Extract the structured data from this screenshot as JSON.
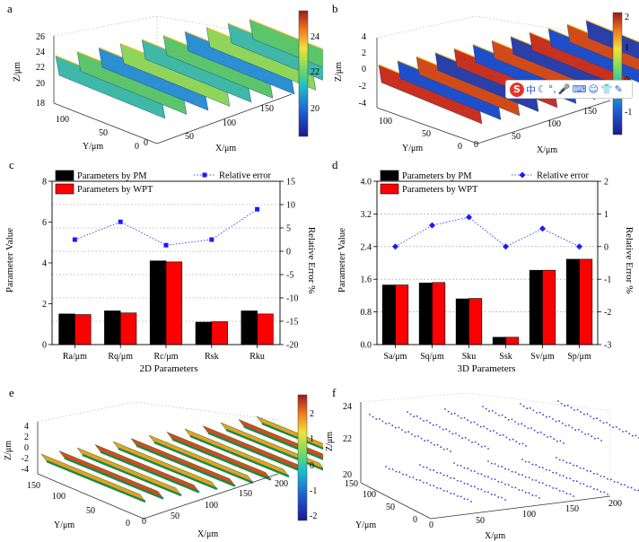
{
  "panels": {
    "a": {
      "label": "a",
      "zlabel": "Z/μm",
      "xlabel": "X/μm",
      "ylabel": "Y/μm",
      "zticks": [
        "26",
        "24",
        "22",
        "20",
        "18"
      ],
      "xticks": [
        "0",
        "50",
        "100",
        "150"
      ],
      "yticks": [
        "100",
        "50",
        "0"
      ],
      "colorbar_ticks": [
        "24",
        "22",
        "20"
      ]
    },
    "b": {
      "label": "b",
      "zlabel": "Z/μm",
      "xlabel": "X/μm",
      "ylabel": "Y/μm",
      "zticks": [
        "4",
        "2",
        "0",
        "-2",
        "-4"
      ],
      "xticks": [
        "0",
        "50",
        "100",
        "150"
      ],
      "yticks": [
        "100",
        "50",
        "0"
      ],
      "colorbar_ticks": [
        "2",
        "1",
        "0",
        "-1"
      ]
    },
    "e": {
      "label": "e",
      "zlabel": "Z/μm",
      "xlabel": "X/μm",
      "ylabel": "Y/μm",
      "zticks": [
        "4",
        "2",
        "0",
        "-2",
        "-4"
      ],
      "xticks": [
        "0",
        "50",
        "100",
        "150",
        "200"
      ],
      "yticks": [
        "150",
        "100",
        "50",
        "0"
      ],
      "colorbar_ticks": [
        "2",
        "1",
        "0",
        "-1",
        "-2"
      ]
    },
    "f": {
      "label": "f",
      "zlabel": "Z/μm",
      "xlabel": "X/μm",
      "ylabel": "Y/μm",
      "zticks": [
        "24",
        "22",
        "20"
      ],
      "xticks": [
        "0",
        "50",
        "100",
        "150",
        "200"
      ],
      "yticks": [
        "150",
        "100",
        "50",
        "0"
      ]
    }
  },
  "ime_toolbar": {
    "logo": "S",
    "mode": "中",
    "icons": [
      "moon-icon",
      "dot-icon",
      "mic-icon",
      "keyboard-icon",
      "person-icon",
      "shirt-icon",
      "wrench-icon"
    ]
  },
  "chart_data": [
    {
      "panel": "c",
      "label": "c",
      "type": "bar",
      "xlabel": "2D Parameters",
      "ylabel": "Parameter Value",
      "y2label": "Relative Error %",
      "categories": [
        "Ra/μm",
        "Rq/μm",
        "Rc/μm",
        "Rsk",
        "Rku"
      ],
      "ylim": [
        0,
        8
      ],
      "yticks": [
        "0",
        "2",
        "4",
        "6",
        "8"
      ],
      "y2lim": [
        -20,
        15
      ],
      "y2ticks": [
        "15",
        "10",
        "5",
        "0",
        "-5",
        "-10",
        "-15",
        "-20"
      ],
      "series": [
        {
          "name": "Parameters by PM",
          "color": "#000000",
          "values": [
            1.5,
            1.65,
            4.1,
            1.1,
            1.65
          ]
        },
        {
          "name": "Parameters by WPT",
          "color": "#ff0000",
          "values": [
            1.47,
            1.55,
            4.05,
            1.12,
            1.5
          ]
        }
      ],
      "relative_error": {
        "name": "Relative error",
        "color": "#1a1aff",
        "values": [
          2.5,
          6.3,
          1.3,
          2.5,
          9.0
        ]
      },
      "legend": [
        "Parameters by PM",
        "Parameters by WPT",
        "Relative error"
      ]
    },
    {
      "panel": "d",
      "label": "d",
      "type": "bar",
      "xlabel": "3D Parameters",
      "ylabel": "Parameter Value",
      "y2label": "Relative Error %",
      "categories": [
        "Sa/μm",
        "Sq/μm",
        "Sku",
        "Ssk",
        "Sv/μm",
        "Sp/μm"
      ],
      "ylim": [
        0,
        4
      ],
      "yticks": [
        "0.0",
        "0.8",
        "1.6",
        "2.4",
        "3.2",
        "4.0"
      ],
      "y2lim": [
        -3,
        2
      ],
      "y2ticks": [
        "2",
        "1",
        "0",
        "-1",
        "-2",
        "-3"
      ],
      "series": [
        {
          "name": "Parameters by PM",
          "color": "#000000",
          "values": [
            1.46,
            1.51,
            1.12,
            0.18,
            1.82,
            2.09
          ]
        },
        {
          "name": "Parameters by WPT",
          "color": "#ff0000",
          "values": [
            1.46,
            1.52,
            1.13,
            0.18,
            1.82,
            2.09
          ]
        }
      ],
      "relative_error": {
        "name": "Relative error",
        "color": "#1a1aff",
        "values": [
          0.0,
          0.65,
          0.9,
          0.0,
          0.55,
          0.0
        ]
      },
      "legend": [
        "Parameters by PM",
        "Parameters by WPT",
        "Relative error"
      ]
    }
  ]
}
